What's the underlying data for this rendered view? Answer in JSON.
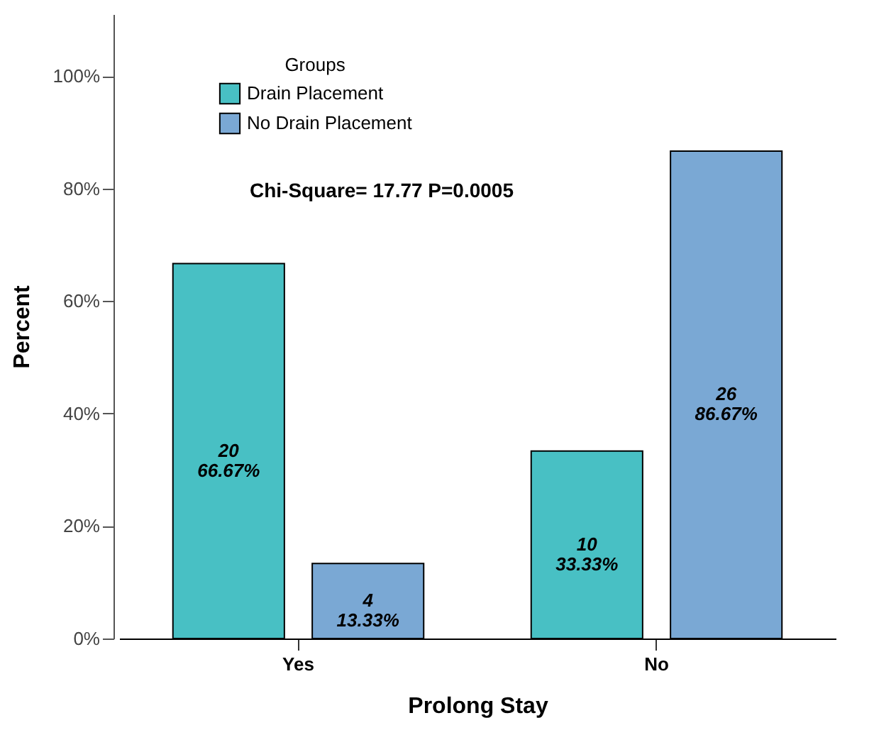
{
  "chart_data": {
    "type": "bar",
    "xlabel": "Prolong Stay",
    "ylabel": "Percent",
    "legend_title": "Groups",
    "categories": [
      "Yes",
      "No"
    ],
    "series": [
      {
        "name": "Drain Placement",
        "color": "#48c0c4",
        "values": [
          66.67,
          33.33
        ],
        "value_labels": [
          "20\n66.67%",
          "10\n33.33%"
        ]
      },
      {
        "name": "No Drain Placement",
        "color": "#7aa8d4",
        "values": [
          13.33,
          86.67
        ],
        "value_labels": [
          "4\n13.33%",
          "26\n86.67%"
        ]
      }
    ],
    "ylim": [
      0,
      111
    ],
    "yticks": [
      {
        "value": 0,
        "label": "0%"
      },
      {
        "value": 20,
        "label": "20%"
      },
      {
        "value": 40,
        "label": "40%"
      },
      {
        "value": 60,
        "label": "60%"
      },
      {
        "value": 80,
        "label": "80%"
      },
      {
        "value": 100,
        "label": "100%"
      }
    ],
    "annotations": [
      "Chi-Square= 17.77 P=0.0005"
    ],
    "legend": "top left",
    "grid": false
  }
}
